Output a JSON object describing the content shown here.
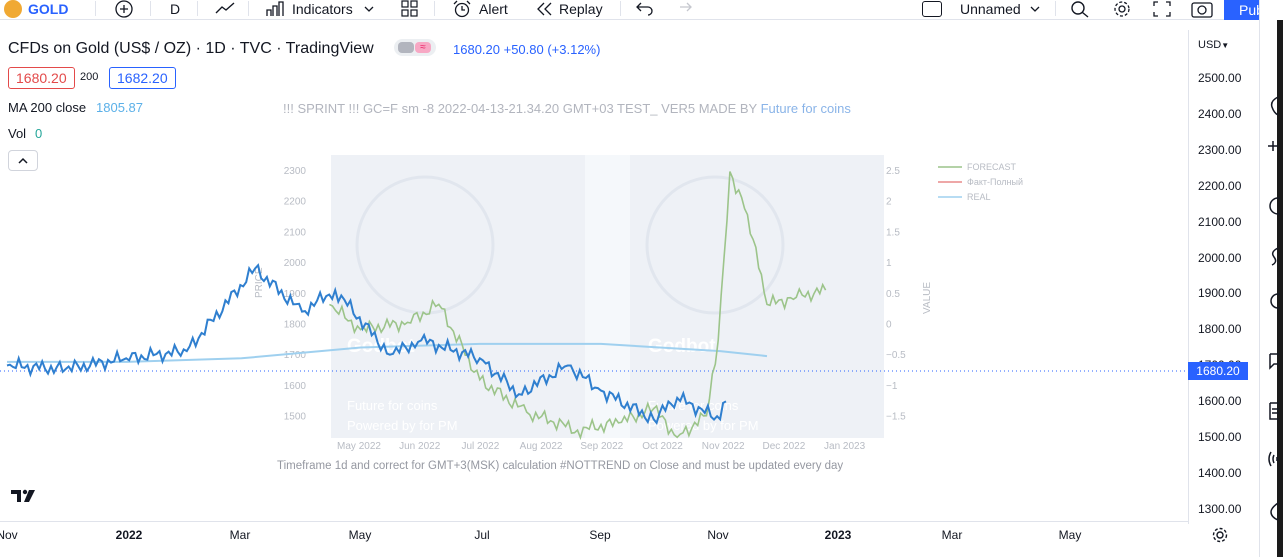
{
  "toolbar": {
    "symbol": "GOLD",
    "interval": "D",
    "indicators_label": "Indicators",
    "alert_label": "Alert",
    "replay_label": "Replay",
    "layout_name": "Unnamed",
    "publish_label": "Publi"
  },
  "legend": {
    "title": "CFDs on Gold (US$ / OZ) · 1D · TVC · TradingView",
    "quote": "1680.20 +50.80 (+3.12%)",
    "bid": "1680.20",
    "spread": "200",
    "ask": "1682.20",
    "ma_label": "MA 200 close",
    "ma_value": "1805.87",
    "vol_label": "Vol",
    "vol_value": "0"
  },
  "overlay": {
    "sprint_text": "!!! SPRINT !!! GC=F sm -8 2022-04-13-21.34.20 GMT+03 TEST_ VER5 MADE BY",
    "sprint_link": "Future for coins",
    "footnote": "Timeframe 1d and correct for GMT+3(MSK) calculation #NOTTREND on Close and must be updated every day"
  },
  "price_scale": {
    "currency": "USD",
    "ticks": [
      "2500.00",
      "2400.00",
      "2300.00",
      "2200.00",
      "2100.00",
      "2000.00",
      "1900.00",
      "1800.00",
      "1700.00",
      "1600.00",
      "1500.00",
      "1400.00",
      "1300.00"
    ],
    "last_price": "1680.20"
  },
  "time_axis": {
    "ticks": [
      {
        "label": "Nov",
        "bold": false
      },
      {
        "label": "2022",
        "bold": true
      },
      {
        "label": "Mar",
        "bold": false
      },
      {
        "label": "May",
        "bold": false
      },
      {
        "label": "Jul",
        "bold": false
      },
      {
        "label": "Sep",
        "bold": false
      },
      {
        "label": "Nov",
        "bold": false
      },
      {
        "label": "2023",
        "bold": true
      },
      {
        "label": "Mar",
        "bold": false
      },
      {
        "label": "May",
        "bold": false
      }
    ]
  },
  "inset": {
    "left_axis": {
      "label": "PRICE",
      "ticks": [
        "2300",
        "2200",
        "2100",
        "2000",
        "1900",
        "1800",
        "1700",
        "1600",
        "1500"
      ]
    },
    "right_axis": {
      "label": "VALUE",
      "ticks": [
        "2.5",
        "2",
        "1.5",
        "1",
        "0.5",
        "0",
        "−0.5",
        "−1",
        "−1.5"
      ]
    },
    "x_ticks": [
      "May 2022",
      "Jun 2022",
      "Jul 2022",
      "Aug 2022",
      "Sep 2022",
      "Oct 2022",
      "Nov 2022",
      "Dec 2022",
      "Jan 2023"
    ],
    "legend": [
      "FORECAST",
      "Факт-Полный",
      "REAL"
    ],
    "watermark": "Godbot",
    "watermark_line1": "Future for coins",
    "watermark_line2": "Powered by for PM"
  },
  "colors": {
    "price_line": "#2f7fcf",
    "ma_line": "#9fd0ef",
    "forecast_line": "#9cc48a",
    "fact_line": "#e88a8a",
    "accent": "#2962ff",
    "bid": "#e34a4a"
  },
  "chart_data": {
    "type": "line",
    "symbol": "CFDs on Gold (US$ / OZ)",
    "ylim": [
      1300,
      2500
    ],
    "series": [
      {
        "name": "GOLD",
        "x": [
          "2021-11-01",
          "2021-12-01",
          "2022-01-01",
          "2022-02-01",
          "2022-03-08",
          "2022-04-01",
          "2022-04-18",
          "2022-05-16",
          "2022-06-01",
          "2022-07-01",
          "2022-07-21",
          "2022-08-15",
          "2022-09-01",
          "2022-09-28",
          "2022-10-10",
          "2022-11-01",
          "2022-11-04"
        ],
        "values": [
          1780,
          1770,
          1800,
          1820,
          2050,
          1930,
          1990,
          1810,
          1850,
          1800,
          1700,
          1780,
          1710,
          1630,
          1690,
          1630,
          1680
        ]
      },
      {
        "name": "MA 200 close",
        "x": [
          "2021-11-01",
          "2022-01-01",
          "2022-03-01",
          "2022-05-01",
          "2022-07-01",
          "2022-09-01",
          "2022-11-01",
          "2022-11-25"
        ],
        "values": [
          1790,
          1790,
          1800,
          1830,
          1840,
          1840,
          1820,
          1806
        ]
      },
      {
        "name": "FORECAST",
        "x": [
          "2022-04-15",
          "2022-05-01",
          "2022-05-25",
          "2022-06-10",
          "2022-07-01",
          "2022-07-25",
          "2022-08-20",
          "2022-09-10",
          "2022-09-28",
          "2022-10-10",
          "2022-10-25",
          "2022-10-31",
          "2022-11-06",
          "2022-11-15",
          "2022-11-25",
          "2022-12-10",
          "2022-12-25"
        ],
        "values": [
          1950,
          1880,
          1900,
          1950,
          1740,
          1650,
          1600,
          1620,
          1660,
          1580,
          1640,
          1850,
          2320,
          2200,
          1950,
          1970,
          1990
        ]
      }
    ]
  }
}
